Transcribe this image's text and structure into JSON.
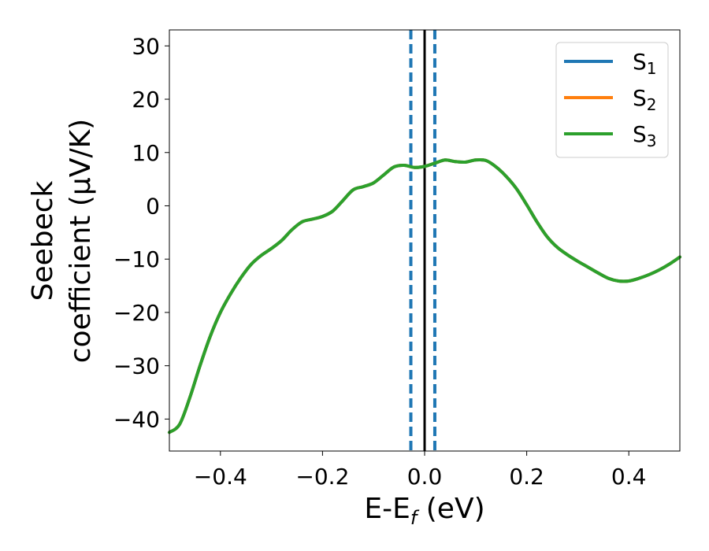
{
  "chart_data": {
    "type": "line",
    "xlabel": "E-E",
    "xlabel_sub": "f",
    "xlabel_unit": " (eV)",
    "ylabel_line1": "Seebeck",
    "ylabel_line2": "coefficient  (μV/K)",
    "xlim": [
      -0.5,
      0.5
    ],
    "ylim": [
      -46,
      33
    ],
    "xticks": [
      -0.4,
      -0.2,
      0.0,
      0.2,
      0.4
    ],
    "xtick_labels": [
      "−0.4",
      "−0.2",
      "0.0",
      "0.2",
      "0.4"
    ],
    "yticks": [
      -40,
      -30,
      -20,
      -10,
      0,
      10,
      20,
      30
    ],
    "ytick_labels": [
      "−40",
      "−30",
      "−20",
      "−10",
      "0",
      "10",
      "20",
      "30"
    ],
    "grid": false,
    "legend_position": "top-right",
    "vertical_lines": [
      {
        "x": -0.027,
        "style": "dashed",
        "color": "#1f77b4"
      },
      {
        "x": 0.0,
        "style": "solid",
        "color": "#000000"
      },
      {
        "x": 0.02,
        "style": "dashed",
        "color": "#1f77b4"
      }
    ],
    "series": [
      {
        "name": "S",
        "sub": "1",
        "color": "#1f77b4"
      },
      {
        "name": "S",
        "sub": "2",
        "color": "#ff7f0e"
      },
      {
        "name": "S",
        "sub": "3",
        "color": "#2ca02c"
      }
    ],
    "x": [
      -0.5,
      -0.48,
      -0.46,
      -0.44,
      -0.42,
      -0.4,
      -0.38,
      -0.36,
      -0.34,
      -0.32,
      -0.3,
      -0.28,
      -0.26,
      -0.24,
      -0.22,
      -0.2,
      -0.18,
      -0.16,
      -0.14,
      -0.12,
      -0.1,
      -0.08,
      -0.06,
      -0.04,
      -0.02,
      0.0,
      0.02,
      0.04,
      0.06,
      0.08,
      0.1,
      0.12,
      0.14,
      0.16,
      0.18,
      0.2,
      0.22,
      0.24,
      0.26,
      0.28,
      0.3,
      0.32,
      0.34,
      0.36,
      0.38,
      0.4,
      0.42,
      0.44,
      0.46,
      0.48,
      0.5
    ],
    "y": [
      -42.5,
      -41.0,
      -36.0,
      -30.0,
      -24.5,
      -20.0,
      -16.5,
      -13.5,
      -11.0,
      -9.3,
      -8.0,
      -6.5,
      -4.5,
      -3.0,
      -2.5,
      -2.0,
      -1.0,
      1.0,
      3.0,
      3.6,
      4.3,
      5.8,
      7.3,
      7.6,
      7.2,
      7.4,
      8.0,
      8.6,
      8.3,
      8.2,
      8.6,
      8.5,
      7.3,
      5.5,
      3.2,
      0.2,
      -3.0,
      -5.8,
      -7.8,
      -9.2,
      -10.4,
      -11.5,
      -12.6,
      -13.6,
      -14.1,
      -14.1,
      -13.6,
      -12.9,
      -12.0,
      -10.9,
      -9.6
    ]
  }
}
